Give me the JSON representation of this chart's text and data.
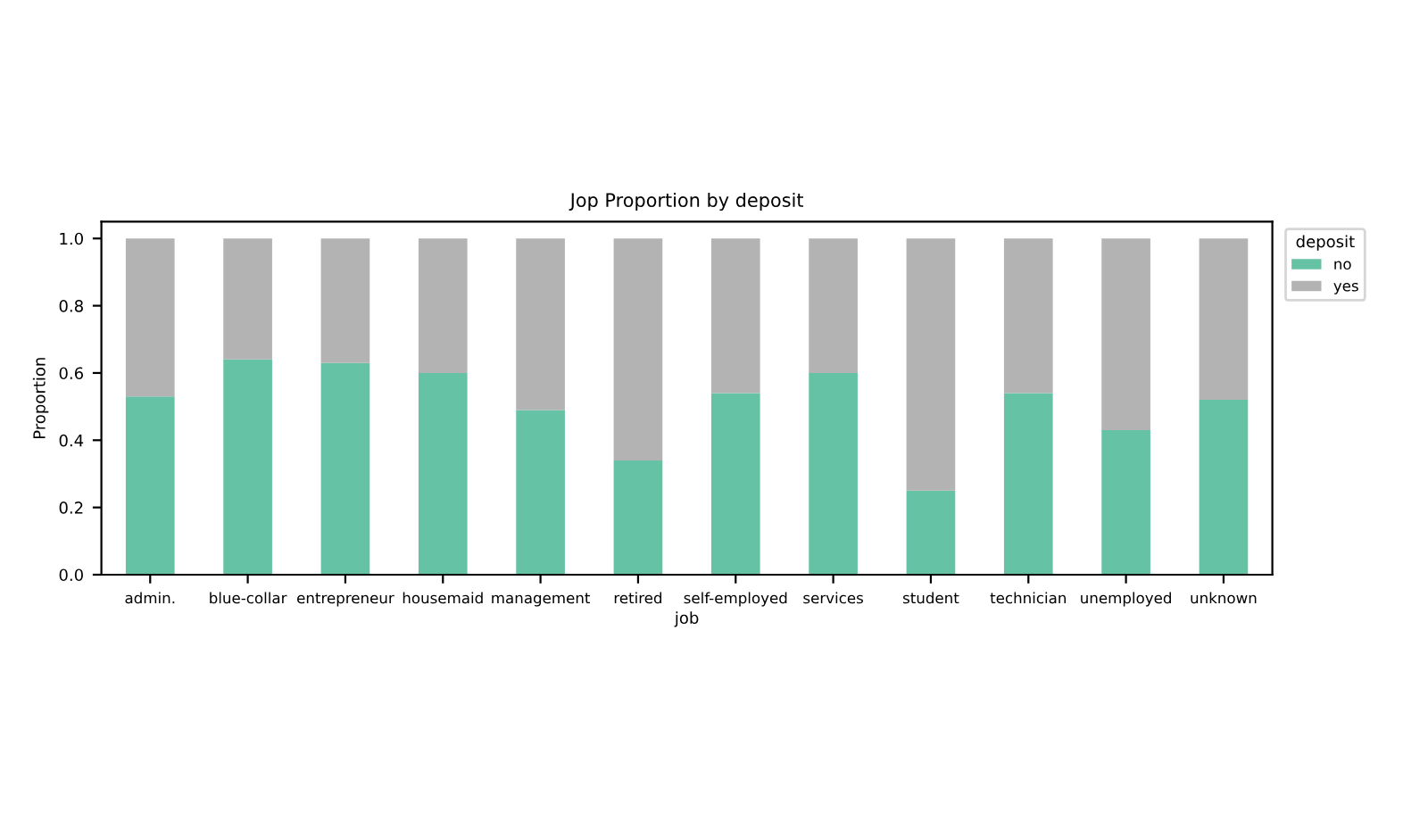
{
  "chart_data": {
    "type": "bar",
    "stacked": true,
    "title": "Jop Proportion by deposit",
    "xlabel": "job",
    "ylabel": "Proportion",
    "legend_title": "deposit",
    "legend": "top right",
    "grid": false,
    "categories": [
      "admin.",
      "blue-collar",
      "entrepreneur",
      "housemaid",
      "management",
      "retired",
      "self-employed",
      "services",
      "student",
      "technician",
      "unemployed",
      "unknown"
    ],
    "series": [
      {
        "name": "no",
        "color": "#66c2a5",
        "values": [
          0.53,
          0.64,
          0.63,
          0.6,
          0.49,
          0.34,
          0.54,
          0.6,
          0.25,
          0.54,
          0.43,
          0.52
        ]
      },
      {
        "name": "yes",
        "color": "#b3b3b3",
        "values": [
          0.47,
          0.36,
          0.37,
          0.4,
          0.51,
          0.66,
          0.46,
          0.4,
          0.75,
          0.46,
          0.57,
          0.48
        ]
      }
    ],
    "ylim": [
      0,
      1.05
    ],
    "yticks": [
      {
        "value": 0,
        "label": "0.0"
      },
      0.2,
      0.4,
      0.6,
      0.8,
      {
        "value": 1,
        "label": "1.0"
      }
    ]
  }
}
